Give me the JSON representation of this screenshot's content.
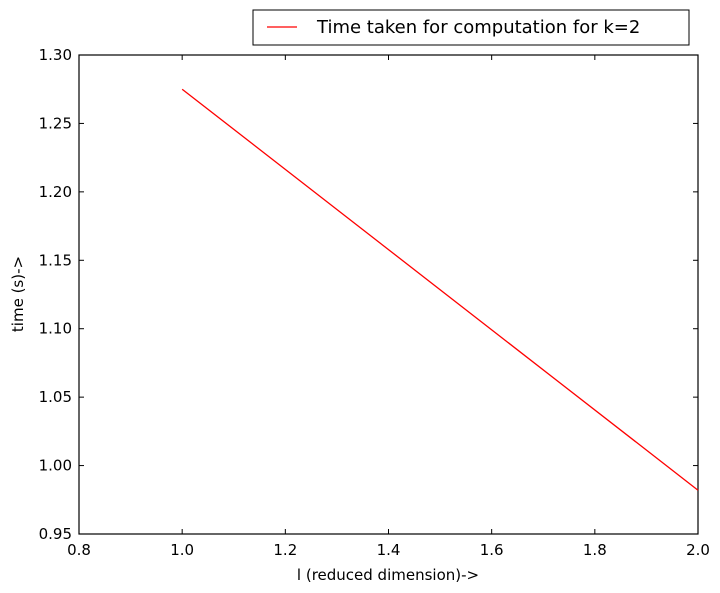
{
  "chart_data": {
    "type": "line",
    "xlabel": "l (reduced dimension)->",
    "ylabel": "time (s)->",
    "xlim": [
      0.8,
      2.0
    ],
    "ylim": [
      0.95,
      1.3
    ],
    "x_ticks": [
      "0.8",
      "1.0",
      "1.2",
      "1.4",
      "1.6",
      "1.8",
      "2.0"
    ],
    "y_ticks": [
      "0.95",
      "1.00",
      "1.05",
      "1.10",
      "1.15",
      "1.20",
      "1.25",
      "1.30"
    ],
    "grid": false,
    "legend_position": "top-right",
    "series": [
      {
        "name": "Time taken for computation for k=2",
        "color": "#ff0000",
        "x": [
          1.0,
          2.0
        ],
        "y": [
          1.275,
          0.982
        ]
      }
    ]
  }
}
